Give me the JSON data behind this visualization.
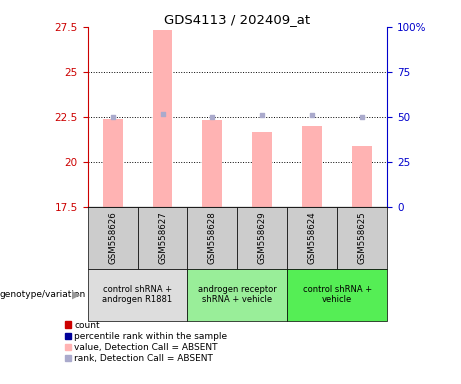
{
  "title": "GDS4113 / 202409_at",
  "samples": [
    "GSM558626",
    "GSM558627",
    "GSM558628",
    "GSM558629",
    "GSM558624",
    "GSM558625"
  ],
  "bar_values": [
    22.4,
    27.3,
    22.35,
    21.7,
    22.0,
    20.9
  ],
  "rank_values": [
    50,
    52,
    50,
    51,
    51,
    50
  ],
  "ylim_left": [
    17.5,
    27.5
  ],
  "ylim_right": [
    0,
    100
  ],
  "yticks_left": [
    17.5,
    20.0,
    22.5,
    25.0,
    27.5
  ],
  "yticks_right": [
    0,
    25,
    50,
    75,
    100
  ],
  "ytick_labels_left": [
    "17.5",
    "20",
    "22.5",
    "25",
    "27.5"
  ],
  "ytick_labels_right": [
    "0",
    "25",
    "50",
    "75",
    "100%"
  ],
  "hgrid_values": [
    20.0,
    22.5,
    25.0
  ],
  "bar_color": "#FFB3B3",
  "rank_color": "#AAAACC",
  "groups": [
    {
      "label": "control shRNA +\nandrogen R1881",
      "indices": [
        0,
        1
      ],
      "color": "#DDDDDD"
    },
    {
      "label": "androgen receptor\nshRNA + vehicle",
      "indices": [
        2,
        3
      ],
      "color": "#99EE99"
    },
    {
      "label": "control shRNA +\nvehicle",
      "indices": [
        4,
        5
      ],
      "color": "#55EE55"
    }
  ],
  "legend_items": [
    {
      "label": "count",
      "color": "#CC0000"
    },
    {
      "label": "percentile rank within the sample",
      "color": "#000099"
    },
    {
      "label": "value, Detection Call = ABSENT",
      "color": "#FFB3B3"
    },
    {
      "label": "rank, Detection Call = ABSENT",
      "color": "#AAAACC"
    }
  ],
  "genotype_label": "genotype/variation",
  "left_axis_color": "#CC0000",
  "right_axis_color": "#0000CC",
  "sample_box_color": "#CCCCCC",
  "bar_width": 0.4
}
